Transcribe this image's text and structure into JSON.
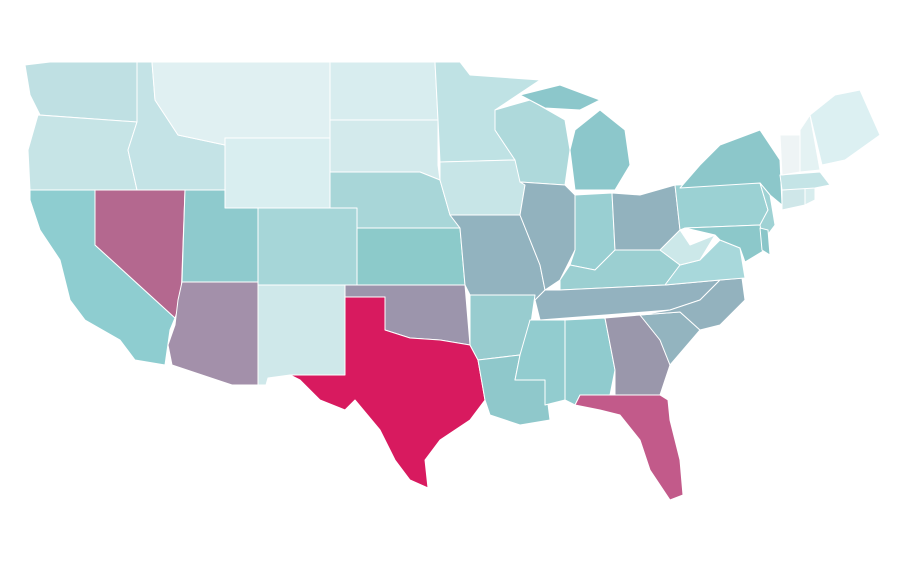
{
  "map": {
    "background": "#ffffff",
    "border_color": "#ffffff",
    "regions": [
      {
        "color": "#bfe0e3"
      },
      {
        "color": "#c6e4e6"
      },
      {
        "color": "#8ecdd0"
      },
      {
        "color": "#b4688f"
      },
      {
        "color": "#c4e3e6"
      },
      {
        "color": "#e0f0f2"
      },
      {
        "color": "#d9eef0"
      },
      {
        "color": "#8ecacd"
      },
      {
        "color": "#a390aa"
      },
      {
        "color": "#a6d6d8"
      },
      {
        "color": "#cfe8ea"
      },
      {
        "color": "#d8edef"
      },
      {
        "color": "#d3eaec"
      },
      {
        "color": "#a8d6d8"
      },
      {
        "color": "#8ccaca"
      },
      {
        "color": "#9c95ac"
      },
      {
        "color": "#d81a5f"
      },
      {
        "color": "#bfe2e4"
      },
      {
        "color": "#c7e5e7"
      },
      {
        "color": "#92b3bf"
      },
      {
        "color": "#98cccf"
      },
      {
        "color": "#8fc8cb"
      },
      {
        "color": "#aed9db"
      },
      {
        "color": "#92b2be"
      },
      {
        "color": "#8cc7cb"
      },
      {
        "color": "#99cfd2"
      },
      {
        "color": "#92b2be"
      },
      {
        "color": "#9bcfd1"
      },
      {
        "color": "#93b2bf"
      },
      {
        "color": "#92cccf"
      },
      {
        "color": "#90cbce"
      },
      {
        "color": "#9a97ab"
      },
      {
        "color": "#c25a8a"
      },
      {
        "color": "#93b4bf"
      },
      {
        "color": "#93b2be"
      },
      {
        "color": "#a8d8db"
      },
      {
        "color": "#cce8e9"
      },
      {
        "color": "#9bd1d3"
      },
      {
        "color": "#8cc7ca"
      },
      {
        "color": "#9fd2d4"
      },
      {
        "color": "#8cc8ca"
      },
      {
        "color": "#8ac6c9"
      },
      {
        "color": "#cfe7e9"
      },
      {
        "color": "#d8edee"
      },
      {
        "color": "#c4e4e6"
      },
      {
        "color": "#eef4f5"
      },
      {
        "color": "#e4f2f3"
      },
      {
        "color": "#dcf0f2"
      }
    ]
  }
}
